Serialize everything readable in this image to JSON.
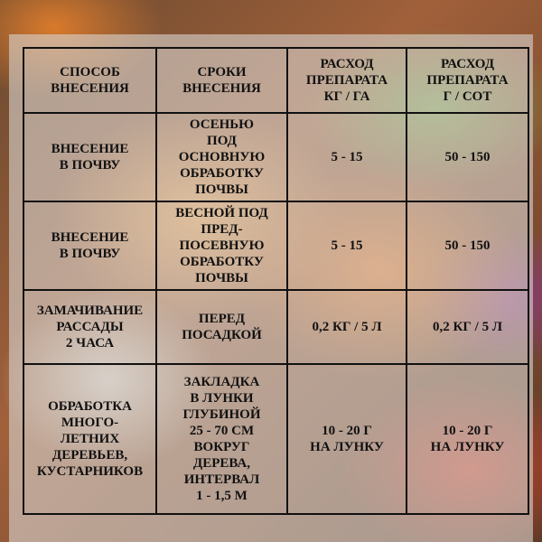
{
  "table": {
    "headers": [
      "СПОСОБ\nВНЕСЕНИЯ",
      "СРОКИ\nВНЕСЕНИЯ",
      "РАСХОД\nПРЕПАРАТА\nКГ / ГА",
      "РАСХОД\nПРЕПАРАТА\nГ / СОТ"
    ],
    "rows": [
      [
        "ВНЕСЕНИЕ\nВ ПОЧВУ",
        "ОСЕНЬЮ\nПОД\nОСНОВНУЮ\nОБРАБОТКУ\nПОЧВЫ",
        "5 - 15",
        "50 - 150"
      ],
      [
        "ВНЕСЕНИЕ\nВ ПОЧВУ",
        "ВЕСНОЙ ПОД\nПРЕД-\nПОСЕВНУЮ\nОБРАБОТКУ\nПОЧВЫ",
        "5 - 15",
        "50 - 150"
      ],
      [
        "ЗАМАЧИВАНИЕ\nРАССАДЫ\n2 ЧАСА",
        "ПЕРЕД\nПОСАДКОЙ",
        "0,2 КГ / 5 Л",
        "0,2 КГ / 5 Л"
      ],
      [
        "ОБРАБОТКА\nМНОГО-\nЛЕТНИХ\nДЕРЕВЬЕВ,\nКУСТАРНИКОВ",
        "ЗАКЛАДКА\nВ ЛУНКИ\nГЛУБИНОЙ\n25 - 70 СМ\nВОКРУГ\nДЕРЕВА,\nИНТЕРВАЛ\n1 - 1,5 М",
        "10 - 20 Г\nНА ЛУНКУ",
        "10 - 20 Г\nНА ЛУНКУ"
      ]
    ]
  }
}
